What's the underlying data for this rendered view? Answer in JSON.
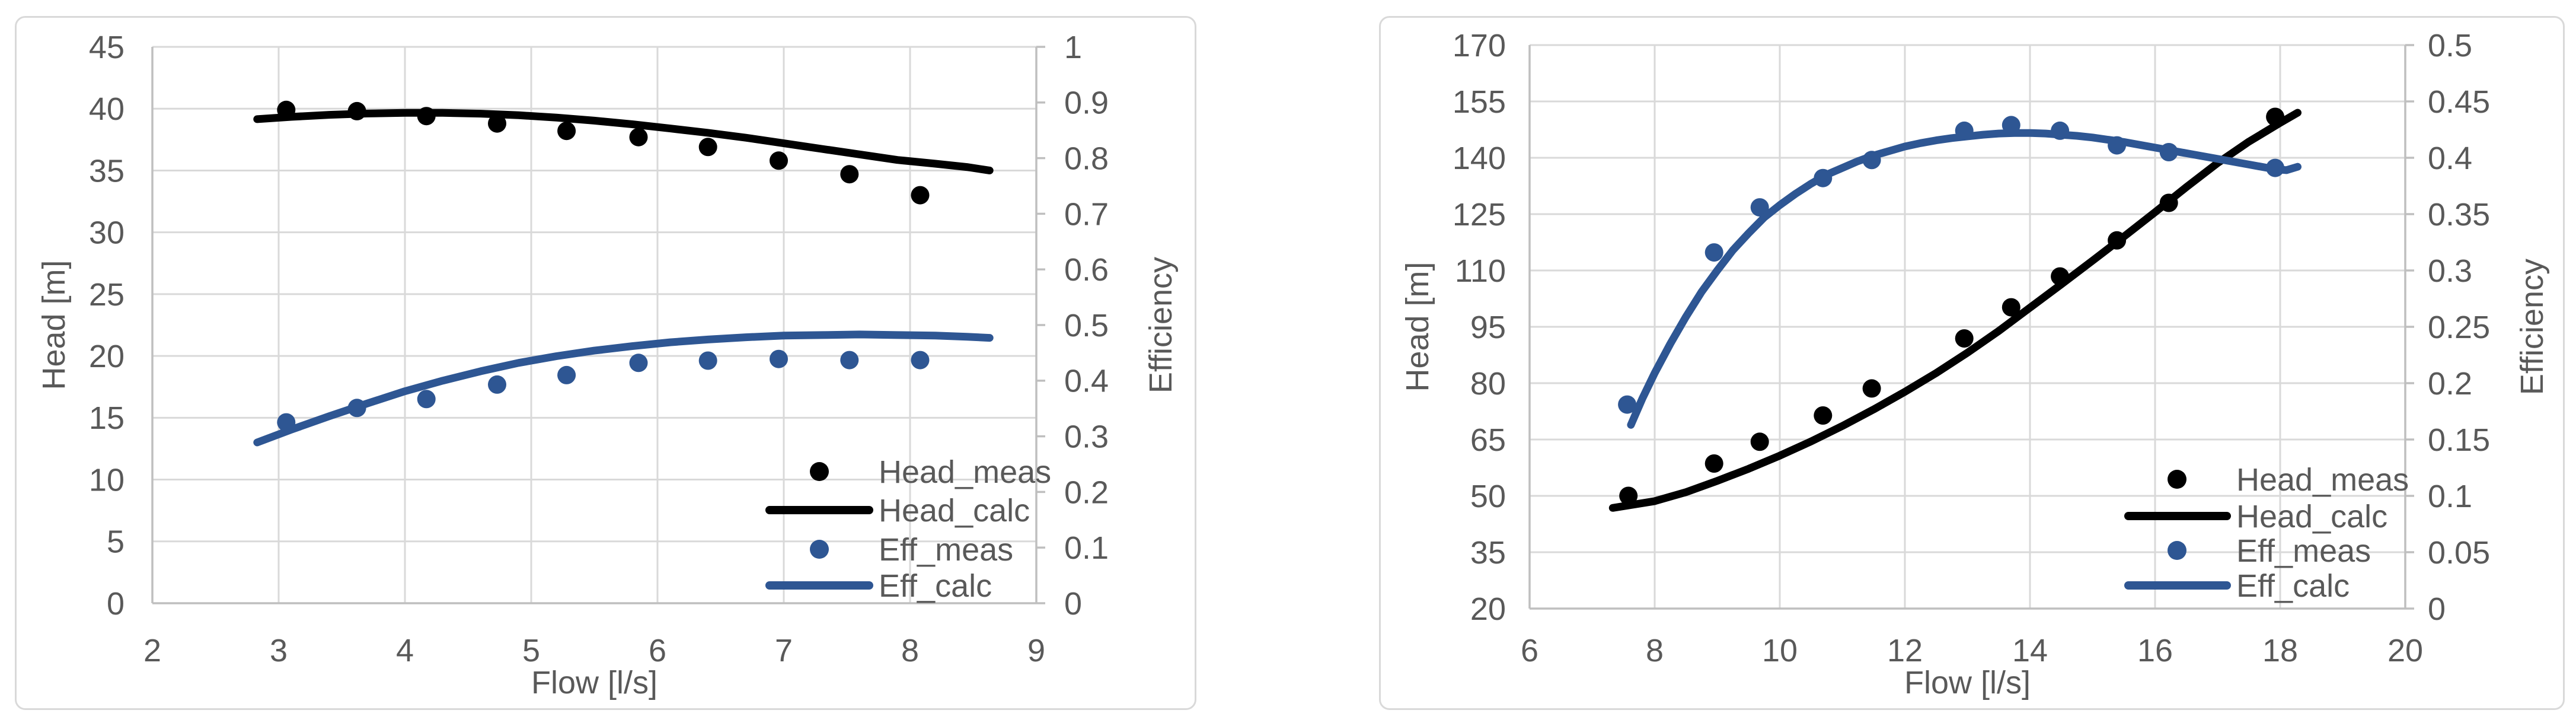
{
  "figure": {
    "description": "Two side-by-side pump performance charts: measured and calculated head and efficiency versus flow",
    "background": "#ffffff"
  },
  "colors": {
    "head_series": "#000000",
    "eff_series": "#2e5693",
    "gridline": "#d9d9d9",
    "axis_line": "#bfbfbf",
    "text": "#595959",
    "panel_border": "#d9d9d9",
    "panel_fill": "#ffffff"
  },
  "legend_labels": {
    "head_meas": "Head_meas",
    "head_calc": "Head_calc",
    "eff_meas": "Eff_meas",
    "eff_calc": "Eff_calc"
  },
  "chart_data": [
    {
      "name": "pump-chart-left",
      "type": "scatter",
      "grid": true,
      "legend_position": "inside-bottom-right",
      "x_axis": {
        "title": "Flow [l/s]",
        "min": 2,
        "max": 9,
        "step": 1,
        "ticks": [
          "2",
          "3",
          "4",
          "5",
          "6",
          "7",
          "8",
          "9"
        ]
      },
      "y_axis": {
        "title": "Head [m]",
        "min": 0,
        "max": 45,
        "step": 5,
        "ticks": [
          "0",
          "5",
          "10",
          "15",
          "20",
          "25",
          "30",
          "35",
          "40",
          "45"
        ]
      },
      "y2_axis": {
        "title": "Efficiency",
        "min": 0,
        "max": 1,
        "step": 0.1,
        "ticks": [
          "0",
          "0.1",
          "0.2",
          "0.3",
          "0.4",
          "0.5",
          "0.6",
          "0.7",
          "0.8",
          "0.9",
          "1"
        ]
      },
      "series": [
        {
          "name": "Head_meas",
          "axis": "y1",
          "style": "scatter",
          "color_key": "head_series",
          "x": [
            3.06,
            3.62,
            4.17,
            4.73,
            5.28,
            5.85,
            6.4,
            6.96,
            7.52,
            8.08
          ],
          "y": [
            39.9,
            39.8,
            39.4,
            38.8,
            38.2,
            37.7,
            36.9,
            35.8,
            34.7,
            33.0
          ]
        },
        {
          "name": "Head_calc",
          "axis": "y1",
          "style": "line",
          "color_key": "head_series",
          "points": [
            [
              2.83,
              39.15
            ],
            [
              3.1,
              39.34
            ],
            [
              3.4,
              39.5
            ],
            [
              3.7,
              39.61
            ],
            [
              4.0,
              39.66
            ],
            [
              4.3,
              39.66
            ],
            [
              4.6,
              39.6
            ],
            [
              4.9,
              39.47
            ],
            [
              5.2,
              39.28
            ],
            [
              5.5,
              39.03
            ],
            [
              5.8,
              38.74
            ],
            [
              6.1,
              38.4
            ],
            [
              6.4,
              38.05
            ],
            [
              6.7,
              37.65
            ],
            [
              7.0,
              37.2
            ],
            [
              7.3,
              36.75
            ],
            [
              7.6,
              36.3
            ],
            [
              7.9,
              35.85
            ],
            [
              8.2,
              35.55
            ],
            [
              8.45,
              35.28
            ],
            [
              8.63,
              35.0
            ]
          ]
        },
        {
          "name": "Eff_meas",
          "axis": "y2",
          "style": "scatter",
          "color_key": "eff_series",
          "x": [
            3.06,
            3.62,
            4.17,
            4.73,
            5.28,
            5.85,
            6.4,
            6.96,
            7.52,
            8.08
          ],
          "y": [
            0.325,
            0.351,
            0.367,
            0.393,
            0.41,
            0.432,
            0.436,
            0.439,
            0.437,
            0.437
          ]
        },
        {
          "name": "Eff_calc",
          "axis": "y2",
          "style": "line",
          "color_key": "eff_series",
          "points": [
            [
              2.83,
              0.289
            ],
            [
              3.1,
              0.312
            ],
            [
              3.4,
              0.336
            ],
            [
              3.7,
              0.359
            ],
            [
              4.0,
              0.381
            ],
            [
              4.3,
              0.4
            ],
            [
              4.6,
              0.417
            ],
            [
              4.9,
              0.432
            ],
            [
              5.2,
              0.444
            ],
            [
              5.5,
              0.454
            ],
            [
              5.8,
              0.462
            ],
            [
              6.1,
              0.469
            ],
            [
              6.4,
              0.474
            ],
            [
              6.7,
              0.478
            ],
            [
              7.0,
              0.481
            ],
            [
              7.3,
              0.482
            ],
            [
              7.6,
              0.483
            ],
            [
              7.9,
              0.482
            ],
            [
              8.2,
              0.481
            ],
            [
              8.45,
              0.479
            ],
            [
              8.63,
              0.477
            ]
          ]
        }
      ]
    },
    {
      "name": "pump-chart-right",
      "type": "scatter",
      "grid": true,
      "legend_position": "inside-bottom-right",
      "x_axis": {
        "title": "Flow [l/s]",
        "min": 6,
        "max": 20,
        "step": 2,
        "ticks": [
          "6",
          "8",
          "10",
          "12",
          "14",
          "16",
          "18",
          "20"
        ]
      },
      "y_axis": {
        "title": "Head [m]",
        "min": 20,
        "max": 170,
        "step": 15,
        "ticks": [
          "20",
          "35",
          "50",
          "65",
          "80",
          "95",
          "110",
          "125",
          "140",
          "155",
          "170"
        ]
      },
      "y2_axis": {
        "title": "Efficiency",
        "min": 0,
        "max": 0.5,
        "step": 0.05,
        "ticks": [
          "0",
          "0.05",
          "0.1",
          "0.15",
          "0.2",
          "0.25",
          "0.3",
          "0.35",
          "0.4",
          "0.45",
          "0.5"
        ]
      },
      "series": [
        {
          "name": "Head_meas",
          "axis": "y1",
          "style": "scatter",
          "color_key": "head_series",
          "x": [
            7.58,
            8.95,
            9.68,
            10.69,
            11.47,
            12.95,
            13.7,
            14.48,
            15.39,
            16.22,
            17.92
          ],
          "y": [
            50.0,
            58.6,
            64.4,
            71.4,
            78.6,
            91.9,
            100.2,
            108.4,
            118.0,
            128.0,
            150.9
          ]
        },
        {
          "name": "Head_calc",
          "axis": "y1",
          "style": "line",
          "color_key": "head_series",
          "points": [
            [
              7.33,
              46.8
            ],
            [
              8.0,
              48.6
            ],
            [
              8.5,
              51.0
            ],
            [
              9.0,
              54.0
            ],
            [
              9.5,
              57.2
            ],
            [
              10.0,
              60.7
            ],
            [
              10.5,
              64.5
            ],
            [
              11.0,
              68.6
            ],
            [
              11.5,
              73.0
            ],
            [
              12.0,
              77.7
            ],
            [
              12.5,
              82.7
            ],
            [
              13.0,
              88.1
            ],
            [
              13.5,
              93.9
            ],
            [
              14.0,
              100.1
            ],
            [
              14.5,
              106.3
            ],
            [
              15.0,
              112.6
            ],
            [
              15.5,
              119.0
            ],
            [
              16.0,
              125.5
            ],
            [
              16.5,
              132.2
            ],
            [
              17.0,
              138.6
            ],
            [
              17.5,
              144.3
            ],
            [
              18.0,
              149.3
            ],
            [
              18.28,
              152.0
            ]
          ]
        },
        {
          "name": "Eff_meas",
          "axis": "y2",
          "style": "scatter",
          "color_key": "eff_series",
          "x": [
            7.56,
            8.95,
            9.68,
            10.69,
            11.47,
            12.95,
            13.7,
            14.48,
            15.39,
            16.22,
            17.92
          ],
          "y": [
            0.181,
            0.316,
            0.356,
            0.382,
            0.398,
            0.424,
            0.429,
            0.424,
            0.411,
            0.405,
            0.391
          ]
        },
        {
          "name": "Eff_calc",
          "axis": "y2",
          "style": "line",
          "color_key": "eff_series",
          "points": [
            [
              7.62,
              0.163
            ],
            [
              7.8,
              0.186
            ],
            [
              8.0,
              0.209
            ],
            [
              8.25,
              0.235
            ],
            [
              8.5,
              0.259
            ],
            [
              8.75,
              0.281
            ],
            [
              9.0,
              0.3
            ],
            [
              9.25,
              0.318
            ],
            [
              9.5,
              0.333
            ],
            [
              9.75,
              0.347
            ],
            [
              10.0,
              0.358
            ],
            [
              10.25,
              0.368
            ],
            [
              10.5,
              0.377
            ],
            [
              10.75,
              0.385
            ],
            [
              11.0,
              0.391
            ],
            [
              11.25,
              0.397
            ],
            [
              11.5,
              0.402
            ],
            [
              11.75,
              0.406
            ],
            [
              12.0,
              0.41
            ],
            [
              12.25,
              0.413
            ],
            [
              12.5,
              0.4155
            ],
            [
              12.75,
              0.4175
            ],
            [
              13.0,
              0.419
            ],
            [
              13.25,
              0.4205
            ],
            [
              13.5,
              0.4215
            ],
            [
              13.75,
              0.422
            ],
            [
              14.0,
              0.422
            ],
            [
              14.25,
              0.4215
            ],
            [
              14.5,
              0.4205
            ],
            [
              14.75,
              0.4195
            ],
            [
              15.0,
              0.418
            ],
            [
              15.5,
              0.414
            ],
            [
              16.0,
              0.409
            ],
            [
              16.5,
              0.404
            ],
            [
              17.0,
              0.399
            ],
            [
              17.5,
              0.394
            ],
            [
              17.9,
              0.39
            ],
            [
              18.1,
              0.389
            ],
            [
              18.28,
              0.392
            ]
          ]
        }
      ]
    }
  ]
}
